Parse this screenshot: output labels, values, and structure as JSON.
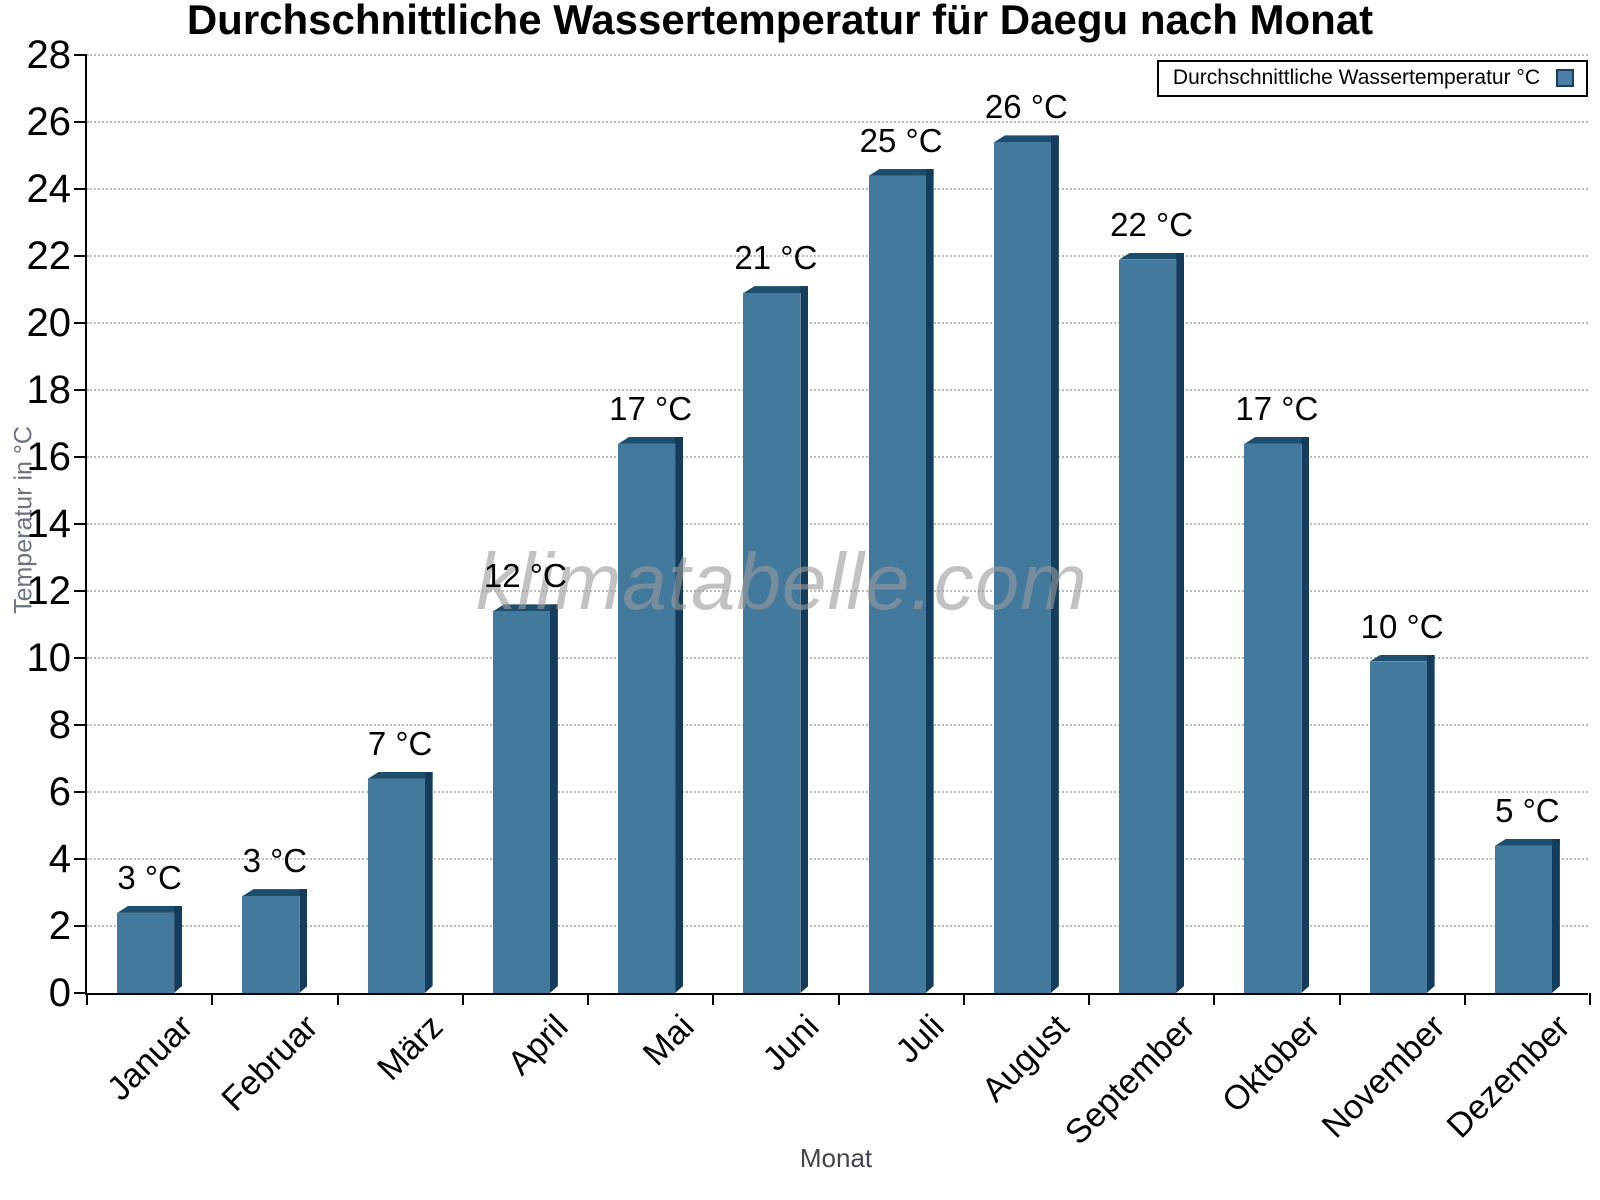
{
  "chart_data": {
    "type": "bar",
    "title": "Durchschnittliche Wassertemperatur für Daegu nach Monat",
    "xlabel": "Monat",
    "ylabel": "Temperatur in °C",
    "watermark": "klimatabelle.com",
    "legend": {
      "label": "Durchschnittliche Wassertemperatur °C",
      "position": "top-right"
    },
    "categories": [
      "Januar",
      "Februar",
      "März",
      "April",
      "Mai",
      "Juni",
      "Juli",
      "August",
      "September",
      "Oktober",
      "November",
      "Dezember"
    ],
    "values": [
      2.6,
      3.1,
      6.6,
      11.6,
      16.6,
      21.1,
      24.6,
      25.6,
      22.1,
      16.6,
      10.1,
      4.6
    ],
    "bar_labels": [
      "3 °C",
      "3 °C",
      "7 °C",
      "12 °C",
      "17 °C",
      "21 °C",
      "25 °C",
      "26 °C",
      "22 °C",
      "17 °C",
      "10 °C",
      "5 °C"
    ],
    "ylim": [
      0,
      28
    ],
    "ytick_step": 2,
    "grid": "horizontal-dotted",
    "colors": {
      "bar_face": "#44799e",
      "bar_top": "#1d4e6e",
      "bar_side": "#143c5c",
      "axis": "#000000",
      "gridline": "#bcbcbc",
      "axis_title": "#6a7380",
      "watermark": "#9b9b9b"
    }
  }
}
